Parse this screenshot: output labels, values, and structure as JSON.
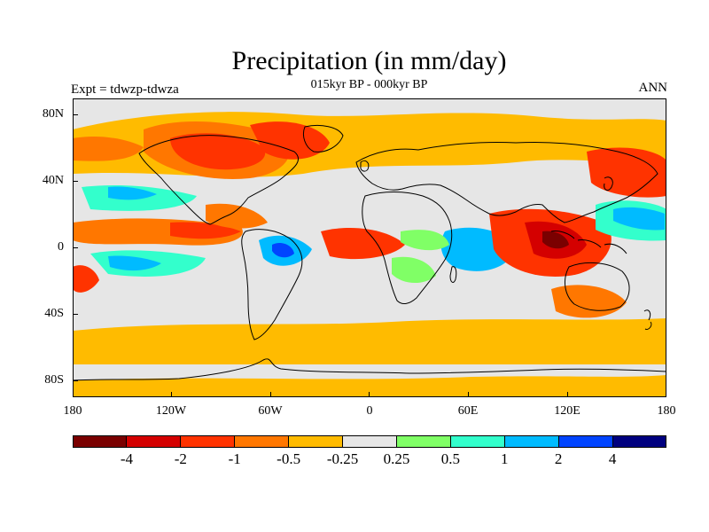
{
  "title": "Precipitation (in mm/day)",
  "subtitle": "015kyr BP - 000kyr BP",
  "expt_label": "Expt = tdwzp-tdwza",
  "season_label": "ANN",
  "lat_ticks": [
    "80N",
    "40N",
    "0",
    "40S",
    "80S"
  ],
  "lon_ticks": [
    "180",
    "120W",
    "60W",
    "0",
    "60E",
    "120E",
    "180"
  ],
  "colorbar": {
    "colors": [
      "#7a0000",
      "#d40000",
      "#ff3300",
      "#ff7700",
      "#ffbb00",
      "#e6e6e6",
      "#80ff66",
      "#33ffcc",
      "#00bbff",
      "#0044ff",
      "#00007f"
    ],
    "labels": [
      "-4",
      "-2",
      "-1",
      "-0.5",
      "-0.25",
      "0.25",
      "0.5",
      "1",
      "2",
      "4"
    ]
  }
}
